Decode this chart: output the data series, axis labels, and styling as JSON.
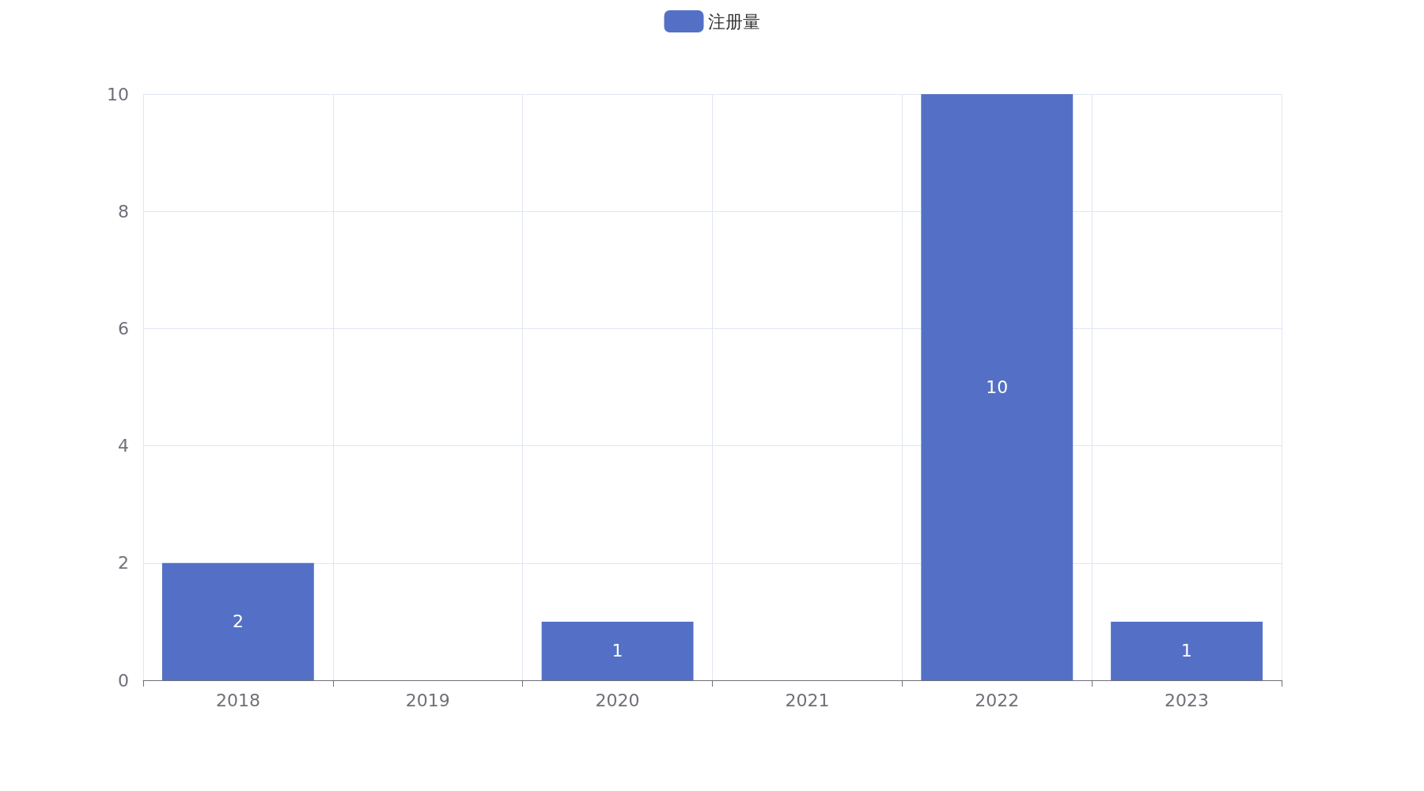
{
  "chart_data": {
    "type": "bar",
    "categories": [
      "2018",
      "2019",
      "2020",
      "2021",
      "2022",
      "2023"
    ],
    "series": [
      {
        "name": "注册量",
        "color": "#5470c6",
        "values": [
          2,
          0,
          1,
          0,
          10,
          1
        ],
        "value_labels": [
          "2",
          null,
          "1",
          null,
          "10",
          "1"
        ]
      }
    ],
    "ylim": [
      0,
      10
    ],
    "yticks": [
      0,
      2,
      4,
      6,
      8,
      10
    ],
    "grid": true,
    "legend": "top"
  }
}
